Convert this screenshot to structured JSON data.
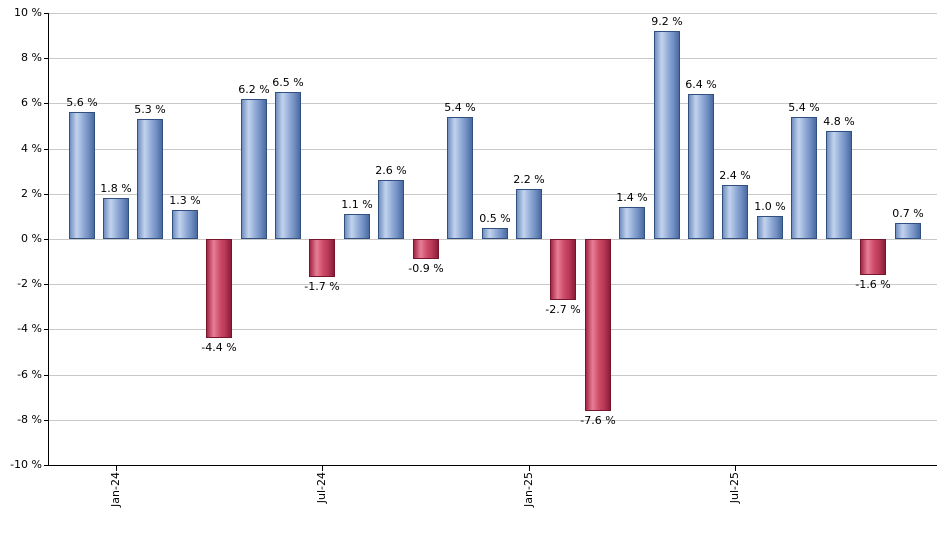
{
  "chart_data": {
    "type": "bar",
    "title": "",
    "unit": "%",
    "values": [
      5.6,
      1.8,
      5.3,
      1.3,
      -4.4,
      6.2,
      6.5,
      -1.7,
      1.1,
      2.6,
      -0.9,
      5.4,
      0.5,
      2.2,
      -2.7,
      -7.6,
      1.4,
      9.2,
      6.4,
      2.4,
      1.0,
      5.4,
      4.8,
      -1.6,
      0.7
    ],
    "bar_labels": [
      "5.6 %",
      "1.8 %",
      "5.3 %",
      "1.3 %",
      "-4.4 %",
      "6.2 %",
      "6.5 %",
      "-1.7 %",
      "1.1 %",
      "2.6 %",
      "-0.9 %",
      "5.4 %",
      "0.5 %",
      "2.2 %",
      "-2.7 %",
      "-7.6 %",
      "1.4 %",
      "9.2 %",
      "6.4 %",
      "2.4 %",
      "1.0 %",
      "5.4 %",
      "4.8 %",
      "-1.6 %",
      "0.7 %"
    ],
    "x_tick_labels": [
      {
        "index": 1,
        "label": "Jan-24"
      },
      {
        "index": 7,
        "label": "Jul-24"
      },
      {
        "index": 13,
        "label": "Jan-25"
      },
      {
        "index": 19,
        "label": "Jul-25"
      }
    ],
    "y_ticks": [
      {
        "value": 10,
        "label": "10 %"
      },
      {
        "value": 8,
        "label": "8 %"
      },
      {
        "value": 6,
        "label": "6 %"
      },
      {
        "value": 4,
        "label": "4 %"
      },
      {
        "value": 2,
        "label": "2 %"
      },
      {
        "value": 0,
        "label": "0 %"
      },
      {
        "value": -2,
        "label": "-2 %"
      },
      {
        "value": -4,
        "label": "-4 %"
      },
      {
        "value": -6,
        "label": "-6 %"
      },
      {
        "value": -8,
        "label": "-8 %"
      },
      {
        "value": -10,
        "label": "-10 %"
      }
    ],
    "ylim": [
      -10,
      10
    ],
    "grid": true,
    "legend_position": "none",
    "positive_color": "#7f9ccd",
    "negative_color": "#c43c5c",
    "gridline_color": "#c9c9c9",
    "axis_color": "#000000"
  }
}
